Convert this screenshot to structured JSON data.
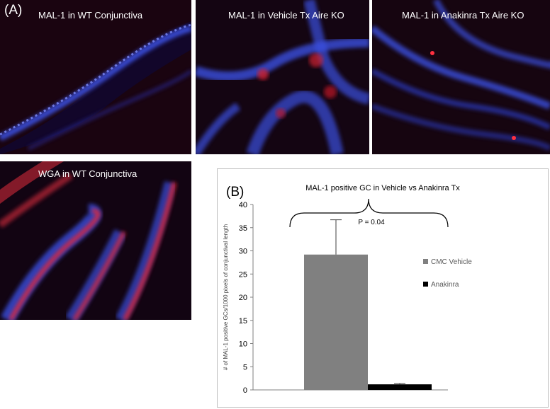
{
  "figure": {
    "panel_a_label": "(A)",
    "panel_b_label": "(B)",
    "micrographs": [
      {
        "title": "MAL-1 in WT Conjunctiva"
      },
      {
        "title": "MAL-1 in Vehicle Tx Aire KO"
      },
      {
        "title": "MAL-1 in Anakinra Tx Aire KO"
      },
      {
        "title": "WGA  in WT Conjunctiva"
      }
    ]
  },
  "chart_data": {
    "type": "bar",
    "title": "MAL-1 positive GC in Vehicle vs Anakinra Tx",
    "xlabel": "",
    "ylabel": "# of MAL-1 positive GCs/1000 pixels of conjunctival length",
    "ylim": [
      0,
      40
    ],
    "yticks": [
      0,
      5,
      10,
      15,
      20,
      25,
      30,
      35,
      40
    ],
    "categories": [
      "CMC Vehicle",
      "Anakinra"
    ],
    "values": [
      29.2,
      1.2
    ],
    "errors": [
      7.5,
      0.2
    ],
    "colors": [
      "#808080",
      "#000000"
    ],
    "legend": [
      {
        "label": "CMC Vehicle",
        "color": "#808080"
      },
      {
        "label": "Anakinra",
        "color": "#000000"
      }
    ],
    "legend_position": "right",
    "grid": false,
    "annotation": "P = 0.04"
  }
}
